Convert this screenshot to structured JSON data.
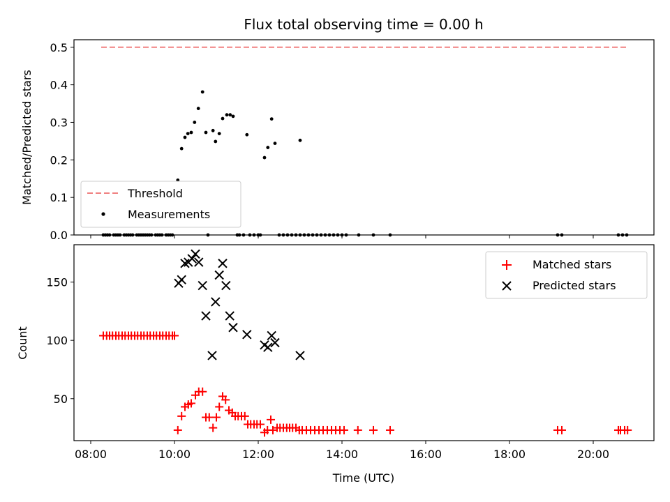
{
  "title": "Flux total observing time = 0.00 h",
  "colors": {
    "threshold": "#f08080",
    "measurement": "#000000",
    "matched": "#ff0000",
    "predicted": "#000000"
  },
  "chart_data": [
    {
      "type": "scatter",
      "ylabel": "Matched/Predicted stars",
      "xlabel": "",
      "xlim": [
        7.6,
        21.45
      ],
      "ylim": [
        0,
        0.52
      ],
      "yticks": [
        "0.0",
        "0.1",
        "0.2",
        "0.3",
        "0.4",
        "0.5"
      ],
      "legend": {
        "position": "lower-left",
        "entries": [
          "Threshold",
          "Measurements"
        ]
      },
      "threshold": {
        "name": "Threshold",
        "value": 0.5,
        "x": [
          8.25,
          20.85
        ]
      },
      "series": [
        {
          "name": "Measurements",
          "points": [
            [
              8.3,
              0
            ],
            [
              8.35,
              0
            ],
            [
              8.4,
              0
            ],
            [
              8.45,
              0
            ],
            [
              8.55,
              0
            ],
            [
              8.6,
              0
            ],
            [
              8.65,
              0
            ],
            [
              8.7,
              0
            ],
            [
              8.8,
              0
            ],
            [
              8.85,
              0
            ],
            [
              8.9,
              0
            ],
            [
              8.95,
              0
            ],
            [
              9.0,
              0
            ],
            [
              9.1,
              0
            ],
            [
              9.15,
              0
            ],
            [
              9.2,
              0
            ],
            [
              9.25,
              0
            ],
            [
              9.3,
              0
            ],
            [
              9.35,
              0
            ],
            [
              9.4,
              0
            ],
            [
              9.45,
              0
            ],
            [
              9.55,
              0
            ],
            [
              9.6,
              0
            ],
            [
              9.65,
              0
            ],
            [
              9.7,
              0
            ],
            [
              9.8,
              0
            ],
            [
              9.85,
              0
            ],
            [
              9.9,
              0
            ],
            [
              9.95,
              0
            ],
            [
              10.08,
              0.146
            ],
            [
              10.17,
              0.23
            ],
            [
              10.25,
              0.26
            ],
            [
              10.32,
              0.27
            ],
            [
              10.4,
              0.273
            ],
            [
              10.48,
              0.3
            ],
            [
              10.57,
              0.337
            ],
            [
              10.67,
              0.381
            ],
            [
              10.75,
              0.273
            ],
            [
              10.8,
              0
            ],
            [
              10.92,
              0.278
            ],
            [
              10.98,
              0.249
            ],
            [
              11.07,
              0.27
            ],
            [
              11.15,
              0.31
            ],
            [
              11.25,
              0.32
            ],
            [
              11.33,
              0.32
            ],
            [
              11.4,
              0.316
            ],
            [
              11.5,
              0
            ],
            [
              11.55,
              0
            ],
            [
              11.65,
              0
            ],
            [
              11.73,
              0.267
            ],
            [
              11.8,
              0
            ],
            [
              11.9,
              0
            ],
            [
              12.0,
              0
            ],
            [
              12.05,
              0
            ],
            [
              12.15,
              0.206
            ],
            [
              12.23,
              0.233
            ],
            [
              12.32,
              0.309
            ],
            [
              12.4,
              0.244
            ],
            [
              12.5,
              0
            ],
            [
              12.6,
              0
            ],
            [
              12.7,
              0
            ],
            [
              12.8,
              0
            ],
            [
              12.9,
              0
            ],
            [
              13.0,
              0.252
            ],
            [
              13.0,
              0
            ],
            [
              13.1,
              0
            ],
            [
              13.2,
              0
            ],
            [
              13.3,
              0
            ],
            [
              13.4,
              0
            ],
            [
              13.5,
              0
            ],
            [
              13.6,
              0
            ],
            [
              13.7,
              0
            ],
            [
              13.8,
              0
            ],
            [
              13.9,
              0
            ],
            [
              14.0,
              0
            ],
            [
              14.1,
              0
            ],
            [
              14.4,
              0
            ],
            [
              14.75,
              0
            ],
            [
              15.15,
              0
            ],
            [
              19.15,
              0
            ],
            [
              19.25,
              0
            ],
            [
              20.6,
              0
            ],
            [
              20.7,
              0
            ],
            [
              20.8,
              0
            ]
          ]
        }
      ]
    },
    {
      "type": "scatter",
      "ylabel": "Count",
      "xlabel": "Time (UTC)",
      "xlim": [
        7.6,
        21.45
      ],
      "ylim": [
        14,
        182
      ],
      "xticks": [
        "08:00",
        "10:00",
        "12:00",
        "14:00",
        "16:00",
        "18:00",
        "20:00"
      ],
      "yticks": [
        "50",
        "100",
        "150"
      ],
      "legend": {
        "position": "top-right",
        "entries": [
          "Matched stars",
          "Predicted stars"
        ]
      },
      "series": [
        {
          "name": "Matched stars",
          "points": [
            [
              8.3,
              104
            ],
            [
              8.38,
              104
            ],
            [
              8.45,
              104
            ],
            [
              8.52,
              104
            ],
            [
              8.6,
              104
            ],
            [
              8.67,
              104
            ],
            [
              8.75,
              104
            ],
            [
              8.82,
              104
            ],
            [
              8.9,
              104
            ],
            [
              8.97,
              104
            ],
            [
              9.05,
              104
            ],
            [
              9.12,
              104
            ],
            [
              9.2,
              104
            ],
            [
              9.27,
              104
            ],
            [
              9.35,
              104
            ],
            [
              9.42,
              104
            ],
            [
              9.5,
              104
            ],
            [
              9.57,
              104
            ],
            [
              9.65,
              104
            ],
            [
              9.72,
              104
            ],
            [
              9.8,
              104
            ],
            [
              9.87,
              104
            ],
            [
              9.95,
              104
            ],
            [
              10.0,
              104
            ],
            [
              10.08,
              23
            ],
            [
              10.17,
              35
            ],
            [
              10.25,
              43
            ],
            [
              10.33,
              45
            ],
            [
              10.4,
              46
            ],
            [
              10.5,
              53
            ],
            [
              10.58,
              56
            ],
            [
              10.67,
              56
            ],
            [
              10.75,
              34
            ],
            [
              10.83,
              34
            ],
            [
              10.92,
              25
            ],
            [
              11.0,
              34
            ],
            [
              11.07,
              43
            ],
            [
              11.15,
              52
            ],
            [
              11.22,
              49
            ],
            [
              11.3,
              40
            ],
            [
              11.38,
              38
            ],
            [
              11.45,
              35
            ],
            [
              11.52,
              35
            ],
            [
              11.6,
              35
            ],
            [
              11.68,
              35
            ],
            [
              11.75,
              28
            ],
            [
              11.82,
              28
            ],
            [
              11.9,
              28
            ],
            [
              11.97,
              28
            ],
            [
              12.05,
              28
            ],
            [
              12.15,
              21
            ],
            [
              12.22,
              23
            ],
            [
              12.3,
              32
            ],
            [
              12.35,
              23
            ],
            [
              12.45,
              25
            ],
            [
              12.52,
              25
            ],
            [
              12.6,
              25
            ],
            [
              12.68,
              25
            ],
            [
              12.75,
              25
            ],
            [
              12.82,
              25
            ],
            [
              12.9,
              25
            ],
            [
              12.98,
              23
            ],
            [
              13.05,
              23
            ],
            [
              13.15,
              23
            ],
            [
              13.25,
              23
            ],
            [
              13.35,
              23
            ],
            [
              13.45,
              23
            ],
            [
              13.55,
              23
            ],
            [
              13.65,
              23
            ],
            [
              13.75,
              23
            ],
            [
              13.85,
              23
            ],
            [
              13.95,
              23
            ],
            [
              14.05,
              23
            ],
            [
              14.38,
              23
            ],
            [
              14.75,
              23
            ],
            [
              15.15,
              23
            ],
            [
              19.15,
              23
            ],
            [
              19.25,
              23
            ],
            [
              20.6,
              23
            ],
            [
              20.65,
              23
            ],
            [
              20.75,
              23
            ],
            [
              20.82,
              23
            ]
          ]
        },
        {
          "name": "Predicted stars",
          "points": [
            [
              10.1,
              149
            ],
            [
              10.17,
              152
            ],
            [
              10.25,
              166
            ],
            [
              10.33,
              167
            ],
            [
              10.42,
              170
            ],
            [
              10.5,
              174
            ],
            [
              10.58,
              167
            ],
            [
              10.67,
              147
            ],
            [
              10.75,
              121
            ],
            [
              10.9,
              87
            ],
            [
              10.98,
              133
            ],
            [
              11.07,
              156
            ],
            [
              11.15,
              166
            ],
            [
              11.23,
              147
            ],
            [
              11.32,
              121
            ],
            [
              11.4,
              111
            ],
            [
              11.73,
              105
            ],
            [
              12.15,
              96
            ],
            [
              12.23,
              94
            ],
            [
              12.32,
              104
            ],
            [
              12.4,
              98
            ],
            [
              13.0,
              87
            ]
          ]
        }
      ]
    }
  ]
}
